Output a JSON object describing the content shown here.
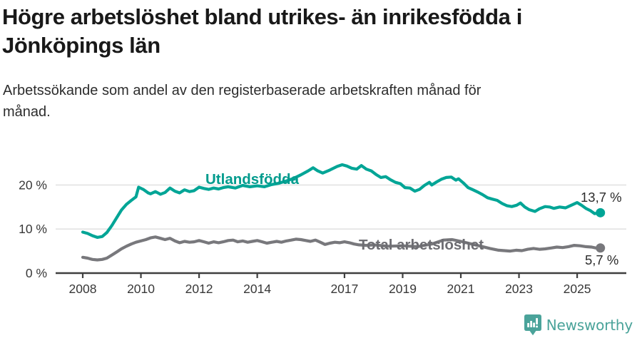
{
  "header": {
    "title": "Högre arbetslöshet bland utrikes- än inrikesfödda i Jönköpings län",
    "subtitle": "Arbetssökande som andel av den registerbaserade arbetskraften månad för månad."
  },
  "footer": {
    "brand": "Newsworthy",
    "logo_icon": "bar-chart-speech-bubble-icon"
  },
  "colors": {
    "teal_line": "#00a596",
    "teal_label": "#009b8d",
    "gray_line": "#78787c",
    "gray_label": "#6d6d72",
    "axis": "#3f3f3f",
    "grid": "#e2e2e2",
    "tick_text": "#383838",
    "value_text": "#2b2b2b",
    "title_text": "#191919",
    "logo_teal": "#4aa39a"
  },
  "chart_data": {
    "type": "line",
    "title": "Högre arbetslöshet bland utrikes- än inrikesfödda i Jönköpings län",
    "subtitle": "Arbetssökande som andel av den registerbaserade arbetskraften månad för månad.",
    "xlabel": "",
    "ylabel": "",
    "grid": "horizontal",
    "legend_position": "inline-labels",
    "xlim": [
      2007.8,
      2026.6
    ],
    "ylim": [
      0,
      26
    ],
    "x_ticks": [
      2008,
      2010,
      2012,
      2014,
      2017,
      2019,
      2021,
      2023,
      2025
    ],
    "y_ticks": [
      {
        "value": 0,
        "label": "0 %"
      },
      {
        "value": 10,
        "label": "10 %"
      },
      {
        "value": 20,
        "label": "20 %"
      }
    ],
    "series": [
      {
        "name": "Utlandsfödda",
        "color": "#00a596",
        "label_color": "#009b8d",
        "end_label": "13,7 %",
        "end_value": 13.7,
        "points": [
          [
            2008.0,
            9.3
          ],
          [
            2008.17,
            9.0
          ],
          [
            2008.33,
            8.5
          ],
          [
            2008.5,
            8.1
          ],
          [
            2008.67,
            8.3
          ],
          [
            2008.83,
            9.2
          ],
          [
            2009.0,
            10.8
          ],
          [
            2009.17,
            12.6
          ],
          [
            2009.33,
            14.3
          ],
          [
            2009.5,
            15.6
          ],
          [
            2009.67,
            16.5
          ],
          [
            2009.83,
            17.3
          ],
          [
            2009.92,
            19.5
          ],
          [
            2010.08,
            19.0
          ],
          [
            2010.25,
            18.2
          ],
          [
            2010.33,
            18.0
          ],
          [
            2010.5,
            18.5
          ],
          [
            2010.67,
            17.9
          ],
          [
            2010.83,
            18.3
          ],
          [
            2011.0,
            19.3
          ],
          [
            2011.17,
            18.6
          ],
          [
            2011.33,
            18.2
          ],
          [
            2011.5,
            18.9
          ],
          [
            2011.67,
            18.5
          ],
          [
            2011.83,
            18.7
          ],
          [
            2012.0,
            19.5
          ],
          [
            2012.17,
            19.2
          ],
          [
            2012.33,
            19.0
          ],
          [
            2012.5,
            19.3
          ],
          [
            2012.67,
            19.1
          ],
          [
            2012.83,
            19.4
          ],
          [
            2013.0,
            19.6
          ],
          [
            2013.25,
            19.3
          ],
          [
            2013.5,
            19.9
          ],
          [
            2013.75,
            19.6
          ],
          [
            2014.0,
            19.8
          ],
          [
            2014.25,
            19.6
          ],
          [
            2014.5,
            20.1
          ],
          [
            2014.75,
            20.4
          ],
          [
            2015.0,
            20.9
          ],
          [
            2015.25,
            21.5
          ],
          [
            2015.5,
            22.3
          ],
          [
            2015.75,
            23.2
          ],
          [
            2015.92,
            23.9
          ],
          [
            2016.08,
            23.2
          ],
          [
            2016.25,
            22.7
          ],
          [
            2016.5,
            23.4
          ],
          [
            2016.75,
            24.2
          ],
          [
            2016.92,
            24.6
          ],
          [
            2017.08,
            24.3
          ],
          [
            2017.25,
            23.8
          ],
          [
            2017.42,
            23.6
          ],
          [
            2017.58,
            24.4
          ],
          [
            2017.75,
            23.6
          ],
          [
            2017.92,
            23.2
          ],
          [
            2018.08,
            22.4
          ],
          [
            2018.25,
            21.7
          ],
          [
            2018.42,
            21.9
          ],
          [
            2018.58,
            21.2
          ],
          [
            2018.75,
            20.6
          ],
          [
            2018.92,
            20.3
          ],
          [
            2019.08,
            19.4
          ],
          [
            2019.25,
            19.3
          ],
          [
            2019.42,
            18.6
          ],
          [
            2019.58,
            19.0
          ],
          [
            2019.75,
            19.9
          ],
          [
            2019.92,
            20.6
          ],
          [
            2020.0,
            20.0
          ],
          [
            2020.17,
            20.7
          ],
          [
            2020.33,
            21.3
          ],
          [
            2020.5,
            21.7
          ],
          [
            2020.67,
            21.8
          ],
          [
            2020.83,
            21.1
          ],
          [
            2020.92,
            21.4
          ],
          [
            2021.08,
            20.5
          ],
          [
            2021.25,
            19.4
          ],
          [
            2021.42,
            18.9
          ],
          [
            2021.58,
            18.4
          ],
          [
            2021.75,
            17.8
          ],
          [
            2021.92,
            17.1
          ],
          [
            2022.08,
            16.8
          ],
          [
            2022.25,
            16.5
          ],
          [
            2022.42,
            15.8
          ],
          [
            2022.58,
            15.3
          ],
          [
            2022.75,
            15.1
          ],
          [
            2022.92,
            15.4
          ],
          [
            2023.05,
            15.9
          ],
          [
            2023.2,
            15.0
          ],
          [
            2023.35,
            14.4
          ],
          [
            2023.55,
            14.0
          ],
          [
            2023.7,
            14.6
          ],
          [
            2023.9,
            15.1
          ],
          [
            2024.05,
            15.0
          ],
          [
            2024.2,
            14.7
          ],
          [
            2024.4,
            15.0
          ],
          [
            2024.6,
            14.8
          ],
          [
            2024.8,
            15.4
          ],
          [
            2025.0,
            16.0
          ],
          [
            2025.15,
            15.4
          ],
          [
            2025.3,
            14.7
          ],
          [
            2025.45,
            14.2
          ],
          [
            2025.6,
            13.5
          ],
          [
            2025.8,
            13.7
          ]
        ]
      },
      {
        "name": "Total arbetslöshet",
        "color": "#78787c",
        "label_color": "#6d6d72",
        "end_label": "5,7 %",
        "end_value": 5.7,
        "points": [
          [
            2008.0,
            3.6
          ],
          [
            2008.17,
            3.4
          ],
          [
            2008.33,
            3.1
          ],
          [
            2008.5,
            3.0
          ],
          [
            2008.67,
            3.1
          ],
          [
            2008.83,
            3.4
          ],
          [
            2009.0,
            4.1
          ],
          [
            2009.17,
            4.8
          ],
          [
            2009.33,
            5.5
          ],
          [
            2009.5,
            6.1
          ],
          [
            2009.67,
            6.6
          ],
          [
            2009.83,
            7.0
          ],
          [
            2010.0,
            7.3
          ],
          [
            2010.17,
            7.6
          ],
          [
            2010.33,
            8.0
          ],
          [
            2010.5,
            8.2
          ],
          [
            2010.67,
            7.9
          ],
          [
            2010.83,
            7.6
          ],
          [
            2011.0,
            7.9
          ],
          [
            2011.17,
            7.3
          ],
          [
            2011.33,
            6.9
          ],
          [
            2011.5,
            7.2
          ],
          [
            2011.67,
            7.0
          ],
          [
            2011.83,
            7.1
          ],
          [
            2012.0,
            7.4
          ],
          [
            2012.17,
            7.1
          ],
          [
            2012.33,
            6.8
          ],
          [
            2012.5,
            7.1
          ],
          [
            2012.67,
            6.9
          ],
          [
            2012.83,
            7.1
          ],
          [
            2013.0,
            7.4
          ],
          [
            2013.17,
            7.5
          ],
          [
            2013.33,
            7.1
          ],
          [
            2013.5,
            7.3
          ],
          [
            2013.67,
            7.0
          ],
          [
            2013.83,
            7.2
          ],
          [
            2014.0,
            7.4
          ],
          [
            2014.17,
            7.1
          ],
          [
            2014.33,
            6.8
          ],
          [
            2014.5,
            7.0
          ],
          [
            2014.67,
            7.2
          ],
          [
            2014.83,
            7.0
          ],
          [
            2015.0,
            7.3
          ],
          [
            2015.17,
            7.5
          ],
          [
            2015.33,
            7.7
          ],
          [
            2015.5,
            7.6
          ],
          [
            2015.67,
            7.4
          ],
          [
            2015.83,
            7.2
          ],
          [
            2016.0,
            7.5
          ],
          [
            2016.17,
            7.0
          ],
          [
            2016.33,
            6.5
          ],
          [
            2016.5,
            6.8
          ],
          [
            2016.67,
            7.0
          ],
          [
            2016.83,
            6.9
          ],
          [
            2017.0,
            7.1
          ],
          [
            2017.17,
            6.9
          ],
          [
            2017.33,
            6.6
          ],
          [
            2017.5,
            6.4
          ],
          [
            2017.75,
            6.3
          ],
          [
            2018.0,
            6.4
          ],
          [
            2018.5,
            6.1
          ],
          [
            2019.0,
            6.2
          ],
          [
            2019.5,
            6.0
          ],
          [
            2020.0,
            6.6
          ],
          [
            2020.4,
            7.5
          ],
          [
            2020.7,
            7.6
          ],
          [
            2021.0,
            7.2
          ],
          [
            2021.5,
            6.4
          ],
          [
            2022.0,
            5.6
          ],
          [
            2022.3,
            5.2
          ],
          [
            2022.5,
            5.1
          ],
          [
            2022.7,
            5.0
          ],
          [
            2022.9,
            5.2
          ],
          [
            2023.1,
            5.1
          ],
          [
            2023.3,
            5.4
          ],
          [
            2023.5,
            5.6
          ],
          [
            2023.7,
            5.4
          ],
          [
            2023.9,
            5.5
          ],
          [
            2024.1,
            5.7
          ],
          [
            2024.3,
            5.9
          ],
          [
            2024.5,
            5.8
          ],
          [
            2024.7,
            6.0
          ],
          [
            2024.9,
            6.3
          ],
          [
            2025.1,
            6.2
          ],
          [
            2025.3,
            6.0
          ],
          [
            2025.5,
            5.9
          ],
          [
            2025.65,
            5.7
          ],
          [
            2025.8,
            5.7
          ]
        ]
      }
    ]
  }
}
